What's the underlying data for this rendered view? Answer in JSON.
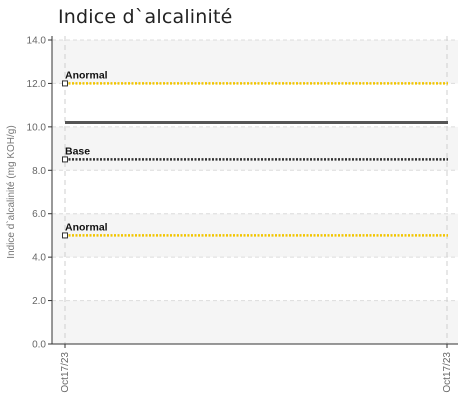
{
  "chart_data": {
    "type": "line",
    "title": "Indice d`alcalinité",
    "ylabel": "Indice d`alcalinité (mg KOH/g)",
    "xlabel": "",
    "ylim": [
      0,
      14
    ],
    "yticks": [
      "0.0",
      "2.0",
      "4.0",
      "6.0",
      "8.0",
      "10.0",
      "12.0",
      "14.0"
    ],
    "ytick_values": [
      0,
      2,
      4,
      6,
      8,
      10,
      12,
      14
    ],
    "x_categories": [
      "Oct17/23",
      "Oct17/23"
    ],
    "grid": true,
    "series": [
      {
        "value": 10.2,
        "color": "#555555",
        "style": "solid"
      }
    ],
    "reference_lines": [
      {
        "label": "Anormal",
        "value": 12.0,
        "color": "#f2c500",
        "style": "dotted"
      },
      {
        "label": "Base",
        "value": 8.5,
        "color": "#333333",
        "style": "dotted"
      },
      {
        "label": "Anormal",
        "value": 5.0,
        "color": "#f2c500",
        "style": "dotted"
      }
    ]
  }
}
